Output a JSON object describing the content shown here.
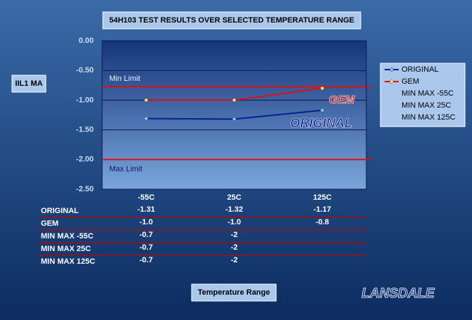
{
  "chart_data": {
    "type": "line",
    "title": "54H103 TEST RESULTS OVER SELECTED TEMPERATURE RANGE",
    "y_label": "IIL1 MA",
    "x_label": "Temperature Range",
    "categories": [
      "-55C",
      "25C",
      "125C"
    ],
    "series": [
      {
        "name": "ORIGINAL",
        "color": "#0a1f8f",
        "values": [
          -1.31,
          -1.32,
          -1.17
        ]
      },
      {
        "name": "GEM",
        "color": "#e01010",
        "values": [
          -1.0,
          -1.0,
          -0.8
        ],
        "value_labels": [
          "-1.0",
          "-1.0",
          "-0.8"
        ]
      },
      {
        "name": "MIN MAX -55C",
        "values": [
          -0.7,
          -2,
          null
        ]
      },
      {
        "name": "MIN MAX 25C",
        "values": [
          -0.7,
          -2,
          null
        ]
      },
      {
        "name": "MIN MAX 125C",
        "values": [
          -0.7,
          -2,
          null
        ]
      }
    ],
    "limits": [
      {
        "label": "Min Limit",
        "value": -0.77
      },
      {
        "label": "Max Limit",
        "value": -2.0
      }
    ],
    "annotations": [
      "GEM",
      "ORIGINAL"
    ],
    "brand": "LANSDALE",
    "ylim": [
      -2.5,
      0
    ],
    "yticks": [
      {
        "value": 0,
        "label": "0.00"
      },
      {
        "value": -0.5,
        "label": "-0.50"
      },
      {
        "value": -1,
        "label": "-1.00"
      },
      {
        "value": -1.5,
        "label": "-1.50"
      },
      {
        "value": -2,
        "label": "-2.00"
      },
      {
        "value": -2.5,
        "label": "-2.50"
      }
    ],
    "grid": true
  }
}
